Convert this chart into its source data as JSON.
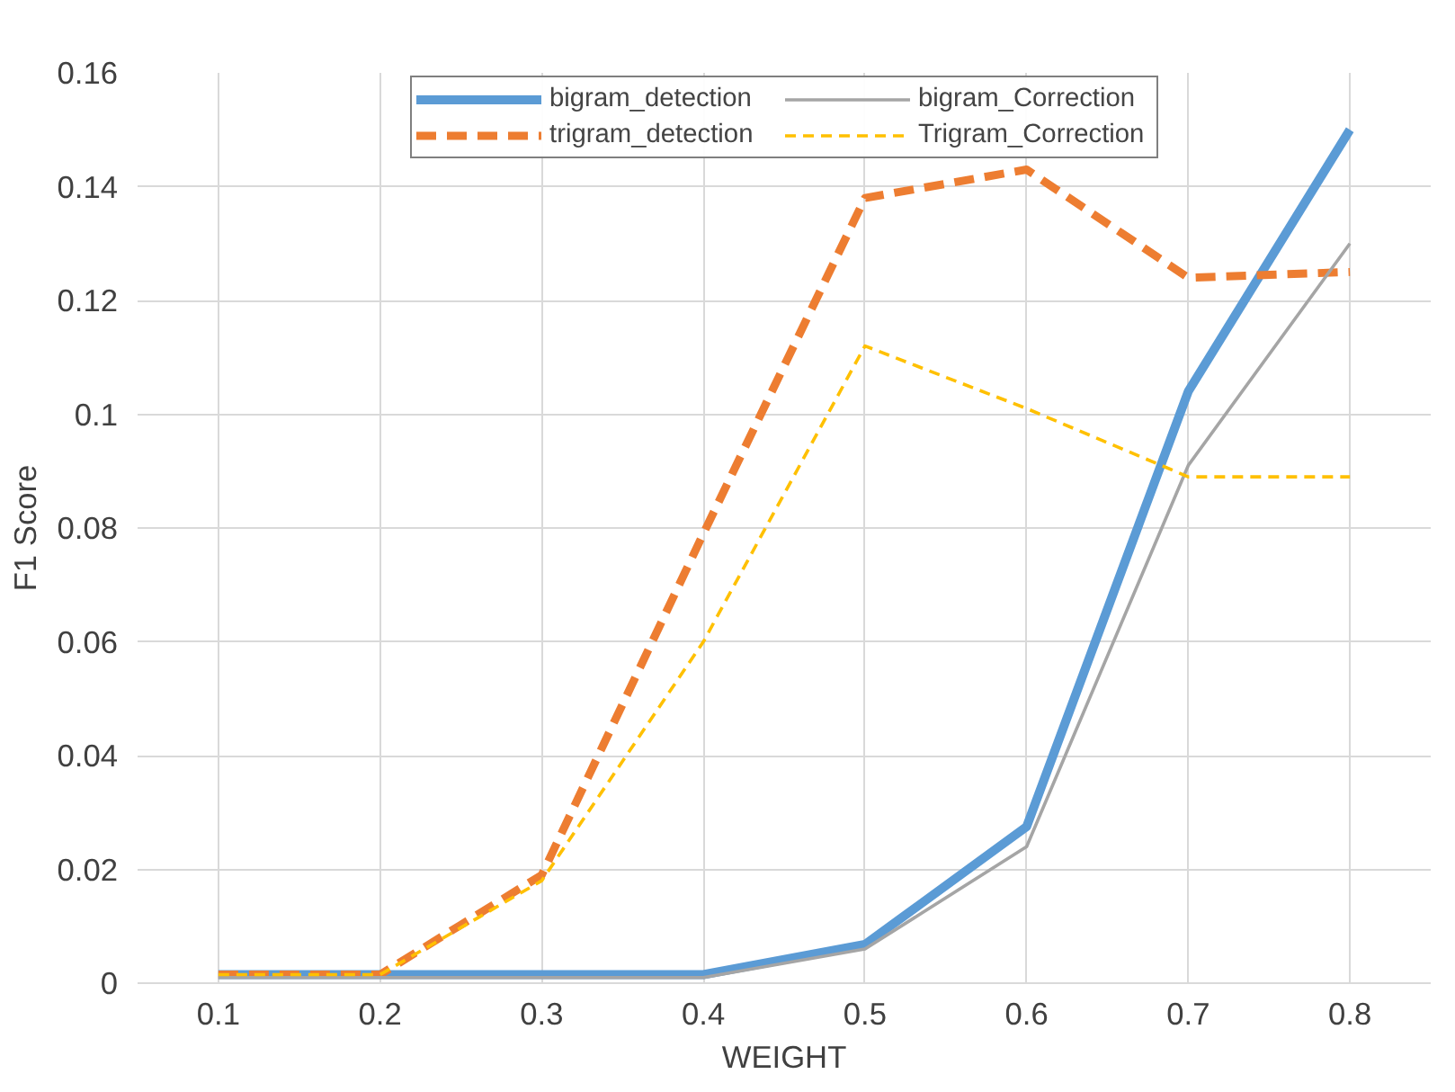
{
  "chart_data": {
    "type": "line",
    "xlabel": "WEIGHT",
    "ylabel": "F1 Score",
    "x": [
      0.1,
      0.2,
      0.3,
      0.4,
      0.5,
      0.6,
      0.7,
      0.8
    ],
    "xlim": [
      0.05,
      0.85
    ],
    "xticks": [
      0.1,
      0.2,
      0.3,
      0.4,
      0.5,
      0.6,
      0.7,
      0.8
    ],
    "ylim": [
      0,
      0.16
    ],
    "yticks": [
      0,
      0.02,
      0.04,
      0.06,
      0.08,
      0.1,
      0.12,
      0.14,
      0.16
    ],
    "grid": true,
    "legend": "top",
    "marker": "none",
    "series": [
      {
        "name": "bigram_detection",
        "color": "#5b9bd5",
        "line_style": "solid",
        "values": [
          0.0015,
          0.0015,
          0.0015,
          0.0015,
          0.0068,
          0.0275,
          0.104,
          0.15
        ]
      },
      {
        "name": "trigram_detection",
        "color": "#ed7d31",
        "line_style": "dashed",
        "values": [
          0.0015,
          0.0015,
          0.019,
          0.079,
          0.138,
          0.143,
          0.124,
          0.125
        ]
      },
      {
        "name": "bigram_Correction",
        "color": "#a5a5a5",
        "line_style": "solid",
        "values": [
          0.001,
          0.001,
          0.001,
          0.001,
          0.006,
          0.024,
          0.091,
          0.13
        ]
      },
      {
        "name": "Trigram_Correction",
        "color": "#ffc000",
        "line_style": "dashed",
        "values": [
          0.0015,
          0.0015,
          0.018,
          0.06,
          0.112,
          0.101,
          0.089,
          0.089
        ]
      }
    ]
  }
}
